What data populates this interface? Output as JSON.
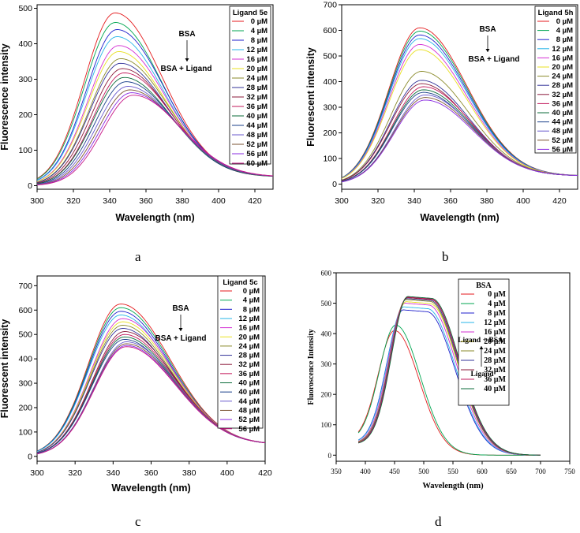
{
  "chart_data": [
    {
      "type": "line",
      "panel": "a",
      "caption": "a",
      "xlabel": "Wavelength (nm)",
      "ylabel": "Fluorescence intensity",
      "xlim": [
        300,
        430
      ],
      "ylim": [
        -10,
        510
      ],
      "xticks": [
        300,
        320,
        340,
        360,
        380,
        400,
        420
      ],
      "yticks": [
        0,
        100,
        200,
        300,
        400,
        500
      ],
      "legend_title": "Ligand 5e",
      "legend_position": "top-right",
      "annotation": {
        "top": "BSA",
        "bottom": "BSA + Ligand",
        "arrow": "down"
      },
      "series": [
        {
          "name": "0 µM",
          "color": "#e41a1c",
          "peak_x": 343,
          "peak_y": 487,
          "end_y": 25
        },
        {
          "name": "4 µM",
          "color": "#00a651",
          "peak_x": 343,
          "peak_y": 460,
          "end_y": 25
        },
        {
          "name": "8 µM",
          "color": "#1f1fcc",
          "peak_x": 344,
          "peak_y": 440,
          "end_y": 25
        },
        {
          "name": "12 µM",
          "color": "#27b5e8",
          "peak_x": 344,
          "peak_y": 420,
          "end_y": 25
        },
        {
          "name": "16 µM",
          "color": "#d32fd3",
          "peak_x": 345,
          "peak_y": 395,
          "end_y": 25
        },
        {
          "name": "20 µM",
          "color": "#e8e020",
          "peak_x": 345,
          "peak_y": 378,
          "end_y": 25
        },
        {
          "name": "24 µM",
          "color": "#8a8a2a",
          "peak_x": 346,
          "peak_y": 358,
          "end_y": 25
        },
        {
          "name": "28 µM",
          "color": "#333399",
          "peak_x": 346,
          "peak_y": 345,
          "end_y": 25
        },
        {
          "name": "32 µM",
          "color": "#8b1a3a",
          "peak_x": 347,
          "peak_y": 330,
          "end_y": 25
        },
        {
          "name": "36 µM",
          "color": "#c2185b",
          "peak_x": 348,
          "peak_y": 318,
          "end_y": 25
        },
        {
          "name": "40 µM",
          "color": "#0b6b3a",
          "peak_x": 348,
          "peak_y": 305,
          "end_y": 25
        },
        {
          "name": "44 µM",
          "color": "#1a3f8a",
          "peak_x": 349,
          "peak_y": 293,
          "end_y": 25
        },
        {
          "name": "48 µM",
          "color": "#6a5acd",
          "peak_x": 350,
          "peak_y": 280,
          "end_y": 25
        },
        {
          "name": "52 µM",
          "color": "#7a5230",
          "peak_x": 351,
          "peak_y": 270,
          "end_y": 25
        },
        {
          "name": "56 µM",
          "color": "#8a2be2",
          "peak_x": 352,
          "peak_y": 262,
          "end_y": 25
        },
        {
          "name": "60 µM",
          "color": "#c71585",
          "peak_x": 353,
          "peak_y": 255,
          "end_y": 25
        }
      ]
    },
    {
      "type": "line",
      "panel": "b",
      "caption": "b",
      "xlabel": "Wavelength (nm)",
      "ylabel": "Fluorescent intensity",
      "xlim": [
        300,
        430
      ],
      "ylim": [
        -20,
        700
      ],
      "xticks": [
        300,
        320,
        340,
        360,
        380,
        400,
        420
      ],
      "yticks": [
        0,
        100,
        200,
        300,
        400,
        500,
        600,
        700
      ],
      "legend_title": "Ligand 5h",
      "legend_position": "top-right",
      "annotation": {
        "top": "BSA",
        "bottom": "BSA + Ligand",
        "arrow": "down"
      },
      "series": [
        {
          "name": "0 µM",
          "color": "#e41a1c",
          "peak_x": 343,
          "peak_y": 610,
          "end_y": 32
        },
        {
          "name": "4 µM",
          "color": "#00a651",
          "peak_x": 343,
          "peak_y": 597,
          "end_y": 32
        },
        {
          "name": "8 µM",
          "color": "#1f1fcc",
          "peak_x": 343,
          "peak_y": 582,
          "end_y": 32
        },
        {
          "name": "12 µM",
          "color": "#27b5e8",
          "peak_x": 343,
          "peak_y": 568,
          "end_y": 32
        },
        {
          "name": "16 µM",
          "color": "#d32fd3",
          "peak_x": 343,
          "peak_y": 545,
          "end_y": 32
        },
        {
          "name": "20 µM",
          "color": "#e8e020",
          "peak_x": 343,
          "peak_y": 525,
          "end_y": 32
        },
        {
          "name": "24 µM",
          "color": "#8a8a2a",
          "peak_x": 344,
          "peak_y": 440,
          "end_y": 32
        },
        {
          "name": "28 µM",
          "color": "#333399",
          "peak_x": 344,
          "peak_y": 405,
          "end_y": 32
        },
        {
          "name": "32 µM",
          "color": "#8b1a3a",
          "peak_x": 344,
          "peak_y": 392,
          "end_y": 32
        },
        {
          "name": "36 µM",
          "color": "#c2185b",
          "peak_x": 345,
          "peak_y": 380,
          "end_y": 32
        },
        {
          "name": "40 µM",
          "color": "#0b6b3a",
          "peak_x": 345,
          "peak_y": 368,
          "end_y": 32
        },
        {
          "name": "44 µM",
          "color": "#1a3f8a",
          "peak_x": 345,
          "peak_y": 358,
          "end_y": 32
        },
        {
          "name": "48 µM",
          "color": "#6a5acd",
          "peak_x": 346,
          "peak_y": 348,
          "end_y": 32
        },
        {
          "name": "52 µM",
          "color": "#7a5230",
          "peak_x": 346,
          "peak_y": 338,
          "end_y": 32
        },
        {
          "name": "56 µM",
          "color": "#8a2be2",
          "peak_x": 346,
          "peak_y": 328,
          "end_y": 32
        }
      ]
    },
    {
      "type": "line",
      "panel": "c",
      "caption": "c",
      "xlabel": "Wavelength (nm)",
      "ylabel": "Fluorescent intensity",
      "xlim": [
        300,
        420
      ],
      "ylim": [
        -20,
        740
      ],
      "xticks": [
        300,
        320,
        340,
        360,
        380,
        400,
        420
      ],
      "yticks": [
        0,
        100,
        200,
        300,
        400,
        500,
        600,
        700
      ],
      "legend_title": "Ligand 5c",
      "legend_position": "top-right",
      "annotation": {
        "top": "BSA",
        "bottom": "BSA + Ligand",
        "arrow": "down"
      },
      "series": [
        {
          "name": "0 µM",
          "color": "#e41a1c",
          "peak_x": 344,
          "peak_y": 625,
          "end_y": 48
        },
        {
          "name": "4 µM",
          "color": "#00a651",
          "peak_x": 344,
          "peak_y": 610,
          "end_y": 48
        },
        {
          "name": "8 µM",
          "color": "#1f1fcc",
          "peak_x": 344,
          "peak_y": 595,
          "end_y": 48
        },
        {
          "name": "12 µM",
          "color": "#27b5e8",
          "peak_x": 344,
          "peak_y": 580,
          "end_y": 48
        },
        {
          "name": "16 µM",
          "color": "#d32fd3",
          "peak_x": 345,
          "peak_y": 565,
          "end_y": 48
        },
        {
          "name": "20 µM",
          "color": "#e8e020",
          "peak_x": 345,
          "peak_y": 552,
          "end_y": 48
        },
        {
          "name": "24 µM",
          "color": "#8a8a2a",
          "peak_x": 345,
          "peak_y": 538,
          "end_y": 48
        },
        {
          "name": "28 µM",
          "color": "#333399",
          "peak_x": 345,
          "peak_y": 525,
          "end_y": 48
        },
        {
          "name": "32 µM",
          "color": "#8b1a3a",
          "peak_x": 346,
          "peak_y": 512,
          "end_y": 48
        },
        {
          "name": "36 µM",
          "color": "#c2185b",
          "peak_x": 346,
          "peak_y": 500,
          "end_y": 48
        },
        {
          "name": "40 µM",
          "color": "#0b6b3a",
          "peak_x": 346,
          "peak_y": 490,
          "end_y": 48
        },
        {
          "name": "40 µM",
          "color": "#1a3f8a",
          "peak_x": 346,
          "peak_y": 480,
          "end_y": 48
        },
        {
          "name": "44 µM",
          "color": "#6a5acd",
          "peak_x": 347,
          "peak_y": 470,
          "end_y": 48
        },
        {
          "name": "48 µM",
          "color": "#7a5230",
          "peak_x": 347,
          "peak_y": 462,
          "end_y": 48
        },
        {
          "name": "52 µM",
          "color": "#8a2be2",
          "peak_x": 347,
          "peak_y": 455,
          "end_y": 48
        },
        {
          "name": "56 µM",
          "color": "#c71585",
          "peak_x": 347,
          "peak_y": 450,
          "end_y": 48
        }
      ]
    },
    {
      "type": "line",
      "panel": "d",
      "caption": "d",
      "xlabel": "Wavelength (nm)",
      "ylabel": "Fluoroscence Intensity",
      "xlim": [
        350,
        750
      ],
      "ylim": [
        -20,
        600
      ],
      "xticks": [
        350,
        400,
        450,
        500,
        550,
        600,
        650,
        700,
        750
      ],
      "yticks": [
        0,
        100,
        200,
        300,
        400,
        500,
        600
      ],
      "legend_title": "BSA",
      "legend_position": "top-right",
      "annotation": {
        "top": "Ligand + BSA",
        "bottom": "Ligand",
        "arrow": "up"
      },
      "series": [
        {
          "name": "0 µM",
          "color": "#e41a1c",
          "peak_x": 450,
          "peak_y": 410,
          "start_y": 45
        },
        {
          "name": "4 µM",
          "color": "#00a651",
          "peak_x": 452,
          "peak_y": 428,
          "start_y": 45
        },
        {
          "name": "8 µM",
          "color": "#1f1fcc",
          "peak_x": 465,
          "peak_y": 478,
          "start_y": 40
        },
        {
          "name": "12 µM",
          "color": "#27b5e8",
          "peak_x": 466,
          "peak_y": 488,
          "start_y": 40
        },
        {
          "name": "16 µM",
          "color": "#d32fd3",
          "peak_x": 468,
          "peak_y": 500,
          "start_y": 38
        },
        {
          "name": "20 µM",
          "color": "#e8e020",
          "peak_x": 470,
          "peak_y": 505,
          "start_y": 38
        },
        {
          "name": "24 µM",
          "color": "#8a8a2a",
          "peak_x": 470,
          "peak_y": 512,
          "start_y": 38
        },
        {
          "name": "28 µM",
          "color": "#333399",
          "peak_x": 471,
          "peak_y": 515,
          "start_y": 36
        },
        {
          "name": "32 µM",
          "color": "#8b1a3a",
          "peak_x": 472,
          "peak_y": 518,
          "start_y": 36
        },
        {
          "name": "36 µM",
          "color": "#c2185b",
          "peak_x": 472,
          "peak_y": 520,
          "start_y": 36
        },
        {
          "name": "40 µM",
          "color": "#0b6b3a",
          "peak_x": 473,
          "peak_y": 522,
          "start_y": 35
        }
      ]
    }
  ]
}
